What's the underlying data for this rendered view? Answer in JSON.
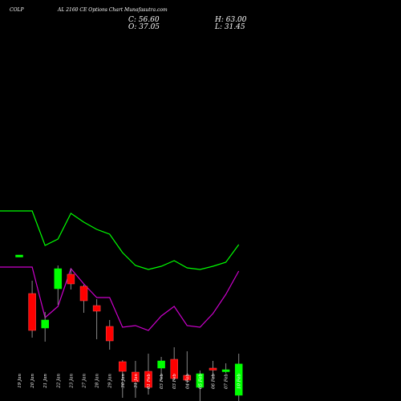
{
  "header": {
    "symbol": "COLP",
    "subtitle": "AL 2160 CE Options Chart Munafasutra.com",
    "close_label": "C: 56.60",
    "open_label": "O: 37.05",
    "high_label": "H: 63.00",
    "low_label": "L: 31.45"
  },
  "colors": {
    "background": "#000000",
    "up": "#00ff00",
    "down": "#ff0000",
    "upper_line": "#00ff00",
    "lower_line": "#cc00cc",
    "text": "#ffffff"
  },
  "chart_data": {
    "type": "candlestick",
    "categories": [
      "19 Jan",
      "20 Jan",
      "21 Jan",
      "22 Jan",
      "23 Jan",
      "27 Jan",
      "28 Jan",
      "29 Jan",
      "30 Jan",
      "31 Jan",
      "01 Feb",
      "03 Feb",
      "03 Feb",
      "04 Feb",
      "05 Feb",
      "06 Feb",
      "07 Feb",
      "10 Feb"
    ],
    "ylim": [
      0,
      140
    ],
    "series": [
      {
        "open": 124.5,
        "high": 124.5,
        "low": 124.5,
        "close": 124.5
      },
      {
        "open": 100.5,
        "high": 108.5,
        "low": 73.0,
        "close": 77.5
      },
      {
        "open": 79.0,
        "high": 89.0,
        "low": 70.5,
        "close": 84.0
      },
      {
        "open": 103.5,
        "high": 118.0,
        "low": 93.5,
        "close": 116.0
      },
      {
        "open": 112.5,
        "high": 116.0,
        "low": 103.0,
        "close": 106.5
      },
      {
        "open": 105.0,
        "high": 106.0,
        "low": 88.5,
        "close": 96.0
      },
      {
        "open": 93.0,
        "high": 97.0,
        "low": 72.0,
        "close": 89.5
      },
      {
        "open": 80.0,
        "high": 84.0,
        "low": 65.5,
        "close": 71.0
      },
      {
        "open": 58.0,
        "high": 59.0,
        "low": 35.5,
        "close": 52.0
      },
      {
        "open": 51.5,
        "high": 58.5,
        "low": 35.5,
        "close": 45.5
      },
      {
        "open": 52.0,
        "high": 63.0,
        "low": 37.5,
        "close": 42.0
      },
      {
        "open": 54.0,
        "high": 61.0,
        "low": 46.5,
        "close": 58.5
      },
      {
        "open": 59.5,
        "high": 67.0,
        "low": 46.5,
        "close": 47.5
      },
      {
        "open": 49.5,
        "high": 64.5,
        "low": 44.5,
        "close": 46.5
      },
      {
        "open": 42.0,
        "high": 52.5,
        "low": 32.5,
        "close": 50.5
      },
      {
        "open": 54.0,
        "high": 58.5,
        "low": 47.5,
        "close": 53.0
      },
      {
        "open": 52.5,
        "high": 57.0,
        "low": 51.0,
        "close": 53.0
      },
      {
        "open": 37.05,
        "high": 63.0,
        "low": 31.45,
        "close": 56.6
      }
    ],
    "upper_band": [
      152.0,
      152.0,
      130.5,
      134.5,
      150.5,
      145.0,
      140.5,
      137.5,
      126.0,
      118.0,
      115.5,
      117.5,
      121.0,
      116.5,
      115.5,
      117.5,
      120.0,
      131.0
    ],
    "lower_band": [
      117.0,
      117.0,
      85.5,
      92.5,
      116.0,
      106.5,
      98.0,
      98.0,
      79.5,
      80.5,
      77.5,
      86.5,
      92.5,
      80.5,
      79.5,
      88.0,
      100.0,
      114.5
    ]
  }
}
